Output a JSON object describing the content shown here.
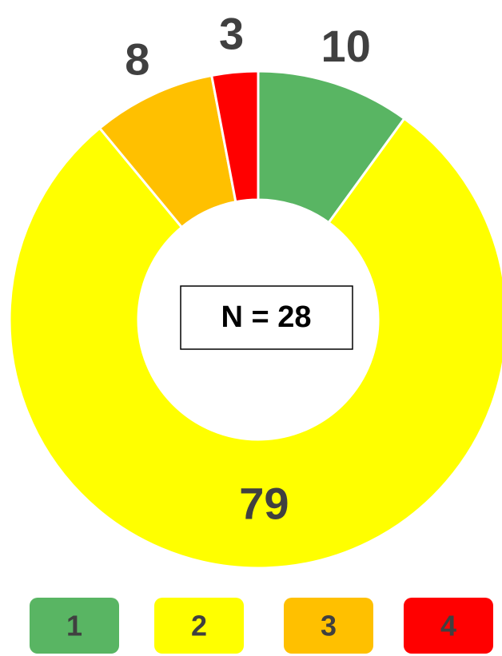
{
  "chart_data": {
    "type": "donut",
    "annotation": "N = 28",
    "categories": [
      "1",
      "2",
      "3",
      "4"
    ],
    "values": [
      10,
      79,
      8,
      3
    ],
    "colors": [
      "#59b563",
      "#ffff00",
      "#ffc000",
      "#ff0000"
    ]
  }
}
